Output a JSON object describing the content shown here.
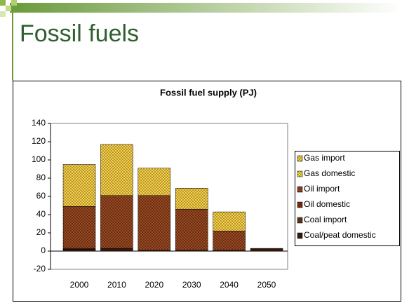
{
  "slide_title": "Fossil fuels",
  "chart_data": {
    "type": "stacked-bar",
    "title": "Fossil fuel supply (PJ)",
    "categories": [
      "2000",
      "2010",
      "2020",
      "2030",
      "2040",
      "2050"
    ],
    "series": [
      {
        "name": "Coal/peat domestic",
        "color": "#3a1a0a",
        "values": [
          2,
          3,
          1,
          1,
          1,
          3
        ]
      },
      {
        "name": "Coal import",
        "color": "#6b3a1a",
        "values": [
          1,
          0,
          0,
          0,
          0,
          0
        ]
      },
      {
        "name": "Oil domestic",
        "color": "#8b2e10",
        "values": [
          0,
          0,
          0,
          0,
          0,
          0
        ]
      },
      {
        "name": "Oil import",
        "color": "#9a4a22",
        "values": [
          46,
          58,
          60,
          45,
          21,
          0
        ]
      },
      {
        "name": "Gas domestic",
        "color": "#f0e040",
        "values": [
          0,
          0,
          0,
          0,
          0,
          0
        ]
      },
      {
        "name": "Gas import",
        "color": "#f0d24a",
        "values": [
          46,
          56,
          30,
          23,
          21,
          0
        ]
      }
    ],
    "ylim": [
      -20,
      140
    ],
    "yticks": [
      -20,
      0,
      20,
      40,
      60,
      80,
      100,
      120,
      140
    ],
    "grid": false,
    "legend": "right"
  }
}
